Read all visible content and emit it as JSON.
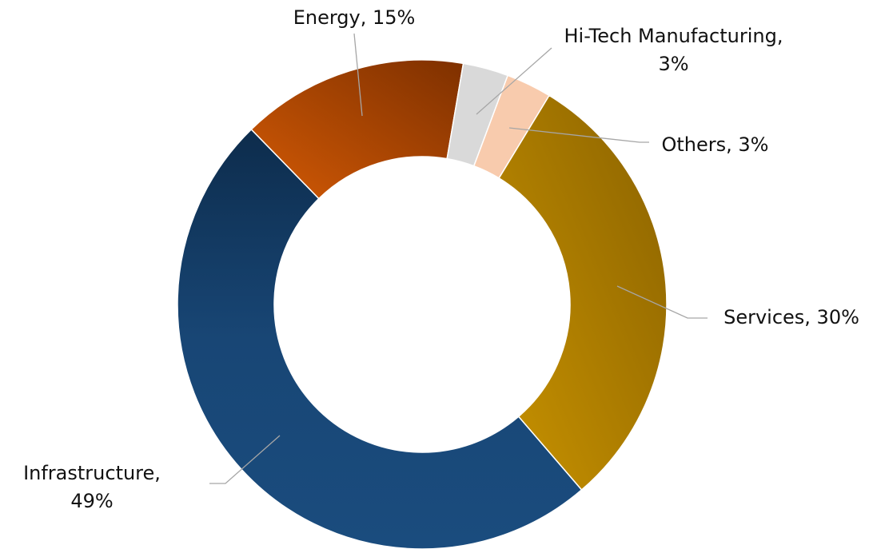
{
  "chart_data": {
    "type": "donut",
    "categories": [
      "Energy",
      "Hi-Tech Manufacturing",
      "Others",
      "Services",
      "Infrastructure"
    ],
    "values": [
      15,
      3,
      3,
      30,
      49
    ],
    "value_labels": [
      "Energy, 15%",
      "Hi-Tech Manufacturing, 3%",
      "Others, 3%",
      "Services, 30%",
      "Infrastructure, 49%"
    ],
    "colors": [
      "#c0510a",
      "#d9d9d9",
      "#f8cbad",
      "#a97d00",
      "#1a4a7a"
    ]
  }
}
